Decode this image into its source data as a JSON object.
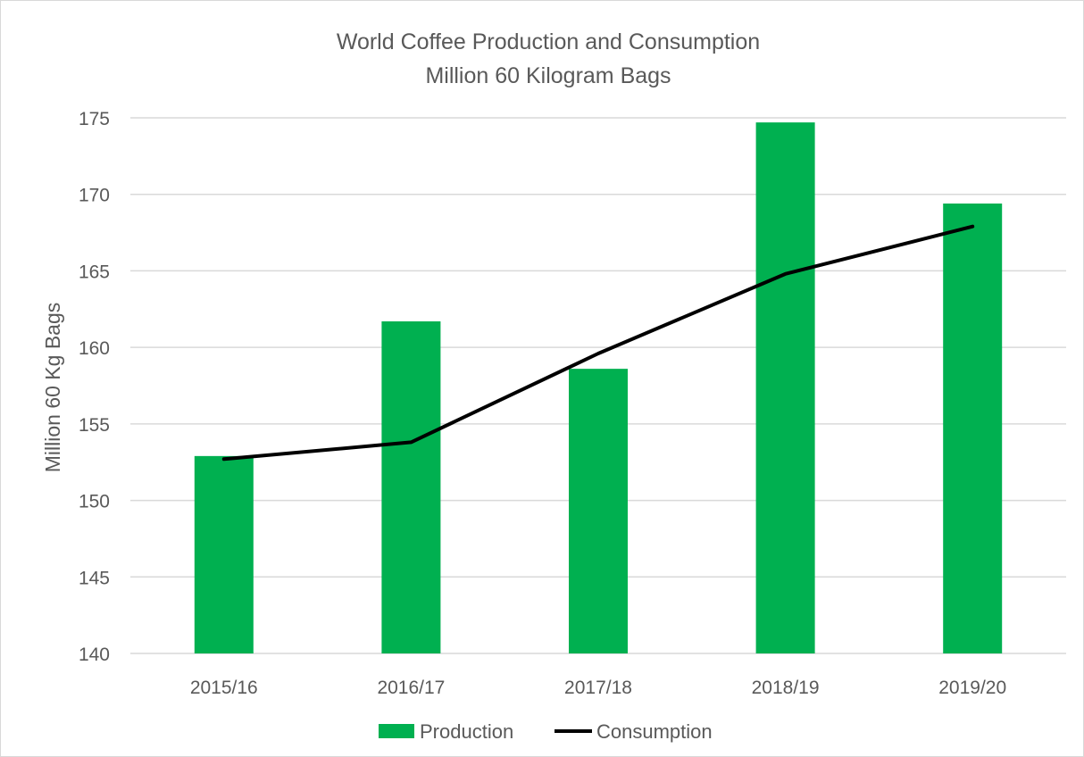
{
  "chart_data": {
    "type": "bar",
    "title": "World Coffee Production and Consumption",
    "subtitle": "Million 60 Kilogram Bags",
    "xlabel": "",
    "ylabel": "Million 60 Kg Bags",
    "categories": [
      "2015/16",
      "2016/17",
      "2017/18",
      "2018/19",
      "2019/20"
    ],
    "ylim": [
      140,
      175
    ],
    "yticks": [
      140,
      145,
      150,
      155,
      160,
      165,
      170,
      175
    ],
    "grid": true,
    "legend_position": "bottom",
    "series": [
      {
        "name": "Production",
        "type": "bar",
        "color": "#00b050",
        "values": [
          152.9,
          161.7,
          158.6,
          174.7,
          169.4
        ]
      },
      {
        "name": "Consumption",
        "type": "line",
        "color": "#000000",
        "values": [
          152.7,
          153.8,
          159.6,
          164.8,
          167.9
        ]
      }
    ]
  }
}
